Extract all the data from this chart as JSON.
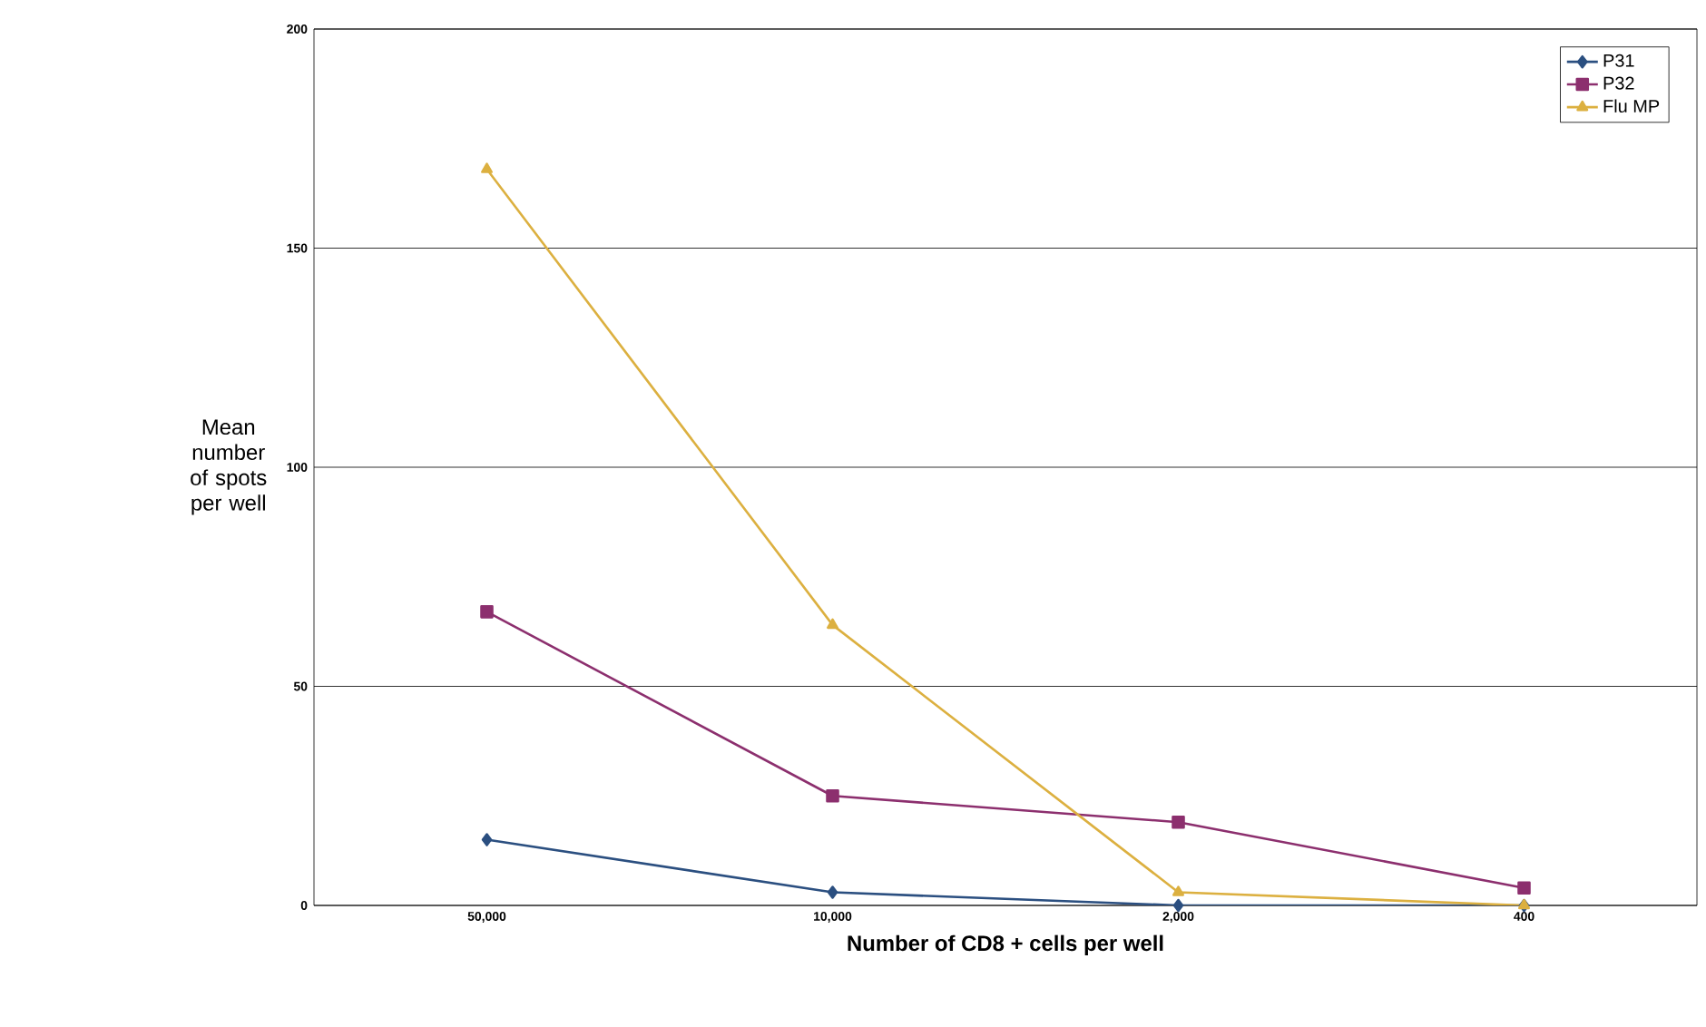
{
  "chart_data": {
    "type": "line",
    "xlabel": "Number of CD8 + cells per well",
    "ylabel": "Mean number of spots per well",
    "categories": [
      "50,000",
      "10,000",
      "2,000",
      "400"
    ],
    "series": [
      {
        "name": "P31",
        "color": "#2b4f80",
        "marker": "diamond",
        "values": [
          15,
          3,
          0,
          0
        ]
      },
      {
        "name": "P32",
        "color": "#8c2f6e",
        "marker": "square",
        "values": [
          67,
          25,
          19,
          4
        ]
      },
      {
        "name": "Flu MP",
        "color": "#dcb040",
        "marker": "triangle",
        "values": [
          168,
          64,
          3,
          0
        ]
      }
    ],
    "ylim": [
      0,
      200
    ],
    "yticks": [
      0,
      50,
      100,
      150,
      200
    ],
    "grid": "y",
    "legend": "top right",
    "line_style": "solid"
  }
}
